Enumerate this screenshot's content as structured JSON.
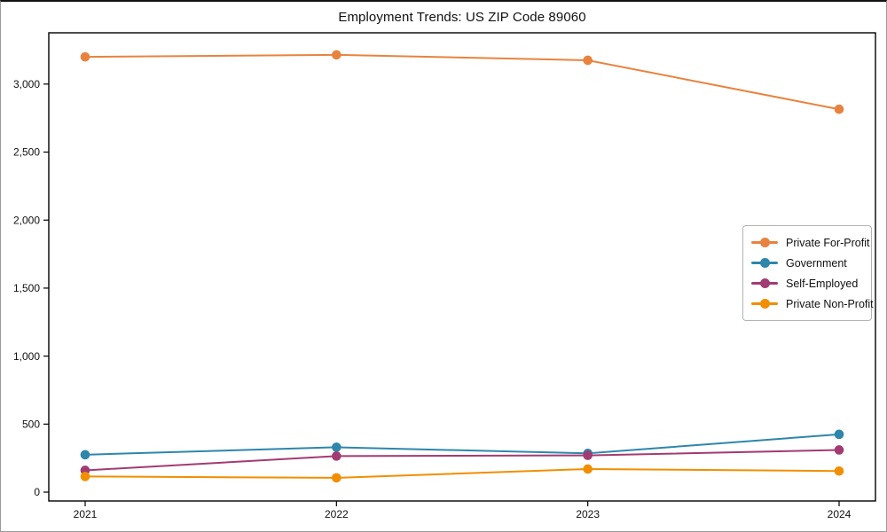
{
  "figure": {
    "title": "Employment Trends: US ZIP Code 89060"
  },
  "chart_data": {
    "type": "line",
    "title": "Employment Trends: US ZIP Code 89060",
    "x": [
      2021,
      2022,
      2023,
      2024
    ],
    "x_tick_labels": [
      "2021",
      "2022",
      "2023",
      "2024"
    ],
    "series": [
      {
        "name": "Private For-Profit",
        "color": "#E8833F",
        "values": [
          3200,
          3215,
          3175,
          2815
        ]
      },
      {
        "name": "Government",
        "color": "#2E86AB",
        "values": [
          275,
          330,
          285,
          425
        ]
      },
      {
        "name": "Self-Employed",
        "color": "#A23B72",
        "values": [
          160,
          265,
          270,
          310
        ]
      },
      {
        "name": "Private Non-Profit",
        "color": "#F18F01",
        "values": [
          115,
          105,
          170,
          155
        ]
      }
    ],
    "xlabel": "",
    "ylabel": "",
    "ylim": [
      -65,
      3377
    ],
    "yticks": [
      0,
      500,
      1000,
      1500,
      2000,
      2500,
      3000
    ],
    "ytick_labels": [
      "0",
      "500",
      "1,000",
      "1,500",
      "2,000",
      "2,500",
      "3,000"
    ],
    "grid": false,
    "legend_position": "center-right",
    "marker": "circle",
    "line_width": 2
  }
}
